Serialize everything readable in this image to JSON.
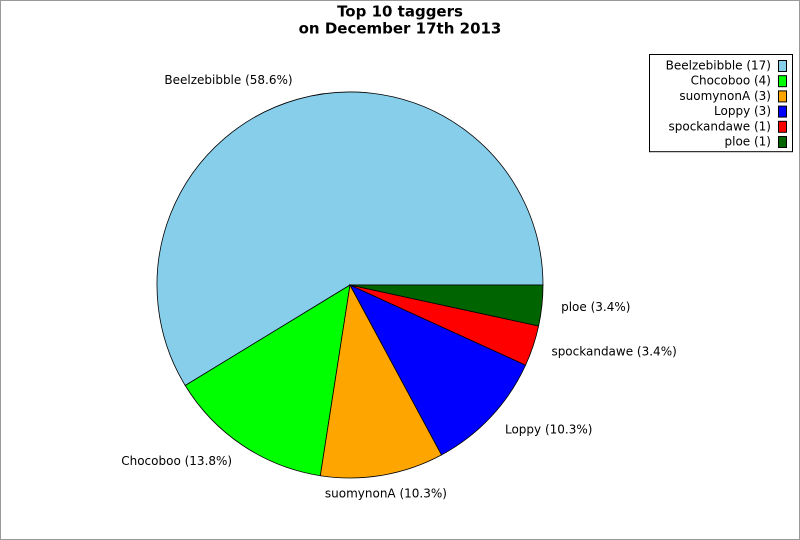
{
  "chart_data": {
    "type": "pie",
    "title": "Top 10 taggers",
    "subtitle": "on December 17th 2013",
    "values": [
      58.6,
      13.8,
      10.3,
      10.3,
      3.4,
      3.4
    ],
    "value_labels": [
      "Beelzebibble (58.6%)",
      "Chocoboo (13.8%)",
      "suomynonA (10.3%)",
      "Loppy (10.3%)",
      "spockandawe (3.4%)",
      "ploe (3.4%)"
    ],
    "legend_labels": [
      "Beelzebibble (17)",
      "Chocoboo (4)",
      "suomynonA (3)",
      "Loppy (3)",
      "spockandawe (1)",
      "ploe (1)"
    ],
    "colors": [
      "#87ceeb",
      "#00ff00",
      "#ffa500",
      "#0000ff",
      "#ff0000",
      "#006400"
    ],
    "legend": "top-right"
  }
}
